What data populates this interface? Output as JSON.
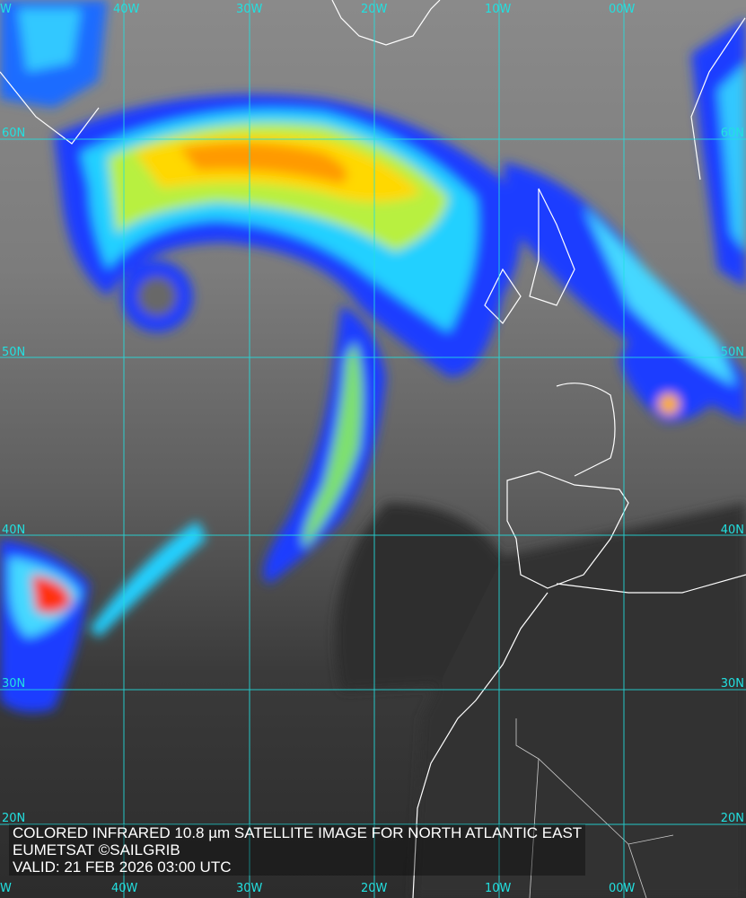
{
  "caption": {
    "title": "COLORED INFRARED 10.8 µm SATELLITE IMAGE FOR NORTH ATLANTIC EAST",
    "credit": "EUMETSAT ©SAILGRIB",
    "valid": "VALID:  21 FEB 2026 03:00 UTC"
  },
  "grid": {
    "longitudes_top": [
      "W",
      "40W",
      "30W",
      "20W",
      "10W",
      "00W"
    ],
    "longitudes_bottom": [
      "W",
      "40W",
      "30W",
      "20W",
      "10W",
      "00W"
    ],
    "latitudes_left": [
      "60N",
      "50N",
      "40N",
      "30N",
      "20N"
    ],
    "latitudes_right": [
      "60N",
      "50N",
      "40N",
      "30N",
      "20N"
    ]
  },
  "colors": {
    "grid": "#22e0e0",
    "coast": "#ffffff",
    "cold_top": "#e02010",
    "mid": "#ffe000",
    "low": "#0030e0"
  }
}
